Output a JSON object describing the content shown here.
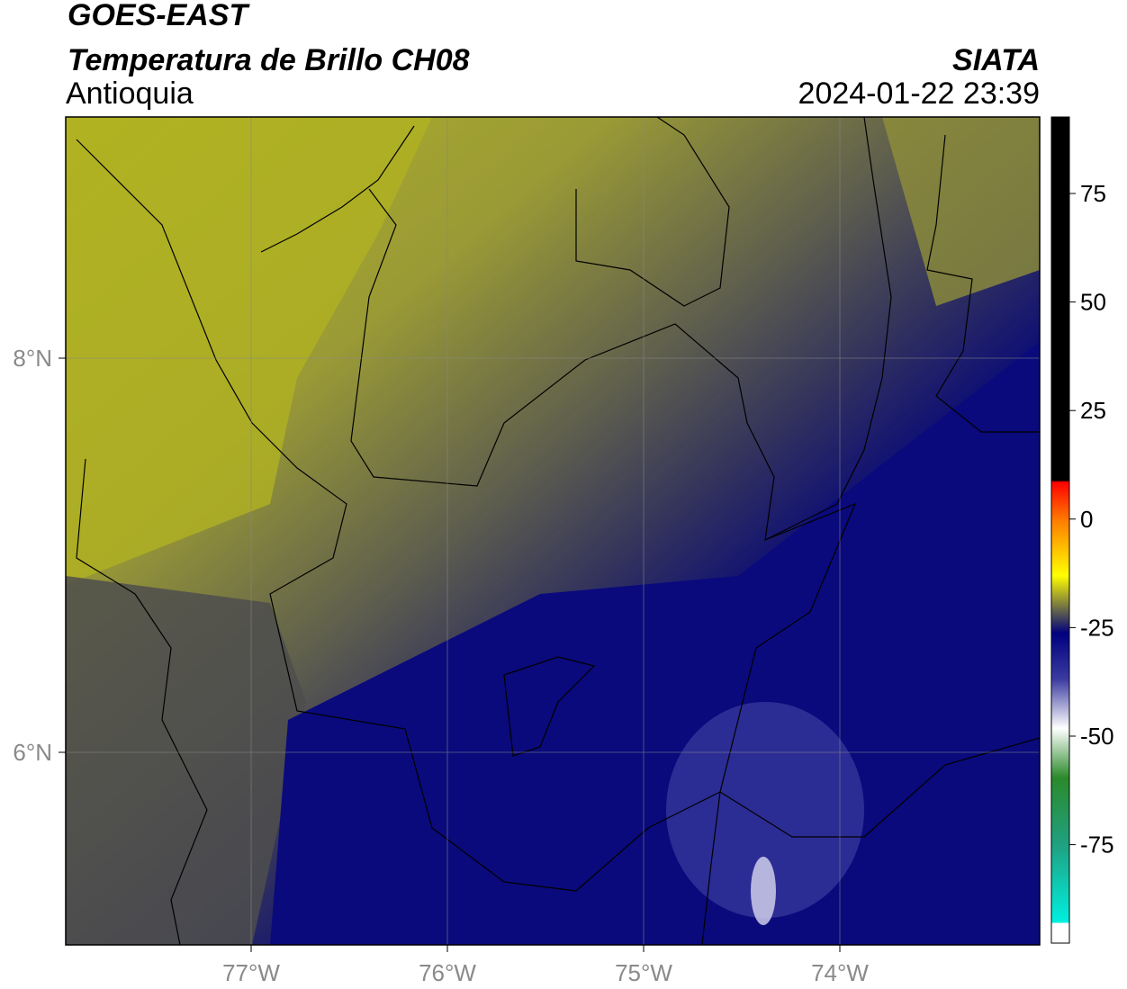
{
  "header": {
    "title": "GOES-EAST",
    "subtitle": "Temperatura de Brillo CH08",
    "region": "Antioquia",
    "source": "SIATA",
    "datetime": "2024-01-22 23:39"
  },
  "map": {
    "x_ticks": [
      "77°W",
      "76°W",
      "75°W",
      "74°W"
    ],
    "y_ticks": [
      "8°N",
      "6°N"
    ]
  },
  "colorbar": {
    "ticks": [
      "75",
      "50",
      "25",
      "0",
      "-25",
      "-50",
      "-75"
    ]
  }
}
